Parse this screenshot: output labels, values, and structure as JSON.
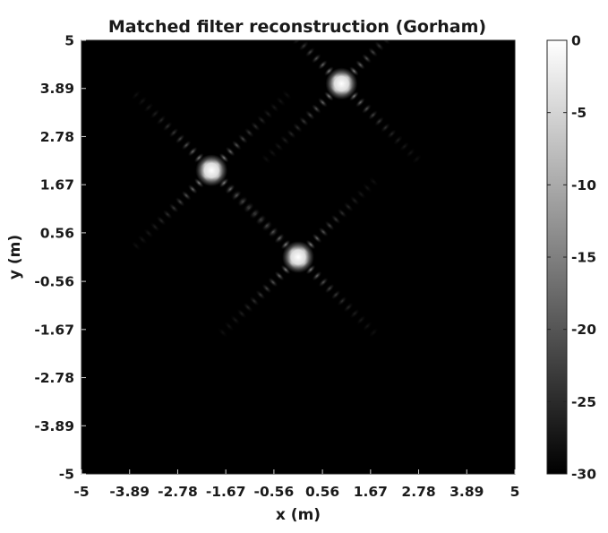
{
  "chart_data": {
    "type": "heatmap",
    "title": "Matched filter reconstruction (Gorham)",
    "xlabel": "x (m)",
    "ylabel": "y (m)",
    "xlim": [
      -5,
      5
    ],
    "ylim": [
      -5,
      5
    ],
    "x_ticks": [
      "-5",
      "-3.89",
      "-2.78",
      "-1.67",
      "-0.56",
      "0.56",
      "1.67",
      "2.78",
      "3.89",
      "5"
    ],
    "y_ticks": [
      "5",
      "3.89",
      "2.78",
      "1.67",
      "0.56",
      "-0.56",
      "-1.67",
      "-2.78",
      "-3.89",
      "-5"
    ],
    "x_tick_values": [
      -5,
      -3.89,
      -2.78,
      -1.67,
      -0.56,
      0.56,
      1.67,
      2.78,
      3.89,
      5
    ],
    "y_tick_values": [
      5,
      3.89,
      2.78,
      1.67,
      0.56,
      -0.56,
      -1.67,
      -2.78,
      -3.89,
      -5
    ],
    "colorbar": {
      "range": [
        -30,
        0
      ],
      "ticks": [
        "0",
        "-5",
        "-10",
        "-15",
        "-20",
        "-25",
        "-30"
      ],
      "tick_values": [
        0,
        -5,
        -10,
        -15,
        -20,
        -25,
        -30
      ],
      "colormap": "gray"
    },
    "targets": [
      {
        "x": -2.0,
        "y": 2.0,
        "peak_db": 0
      },
      {
        "x": 1.0,
        "y": 4.0,
        "peak_db": 0
      },
      {
        "x": 0.0,
        "y": 0.0,
        "peak_db": 0
      }
    ],
    "grid": false,
    "background_db": -30
  }
}
